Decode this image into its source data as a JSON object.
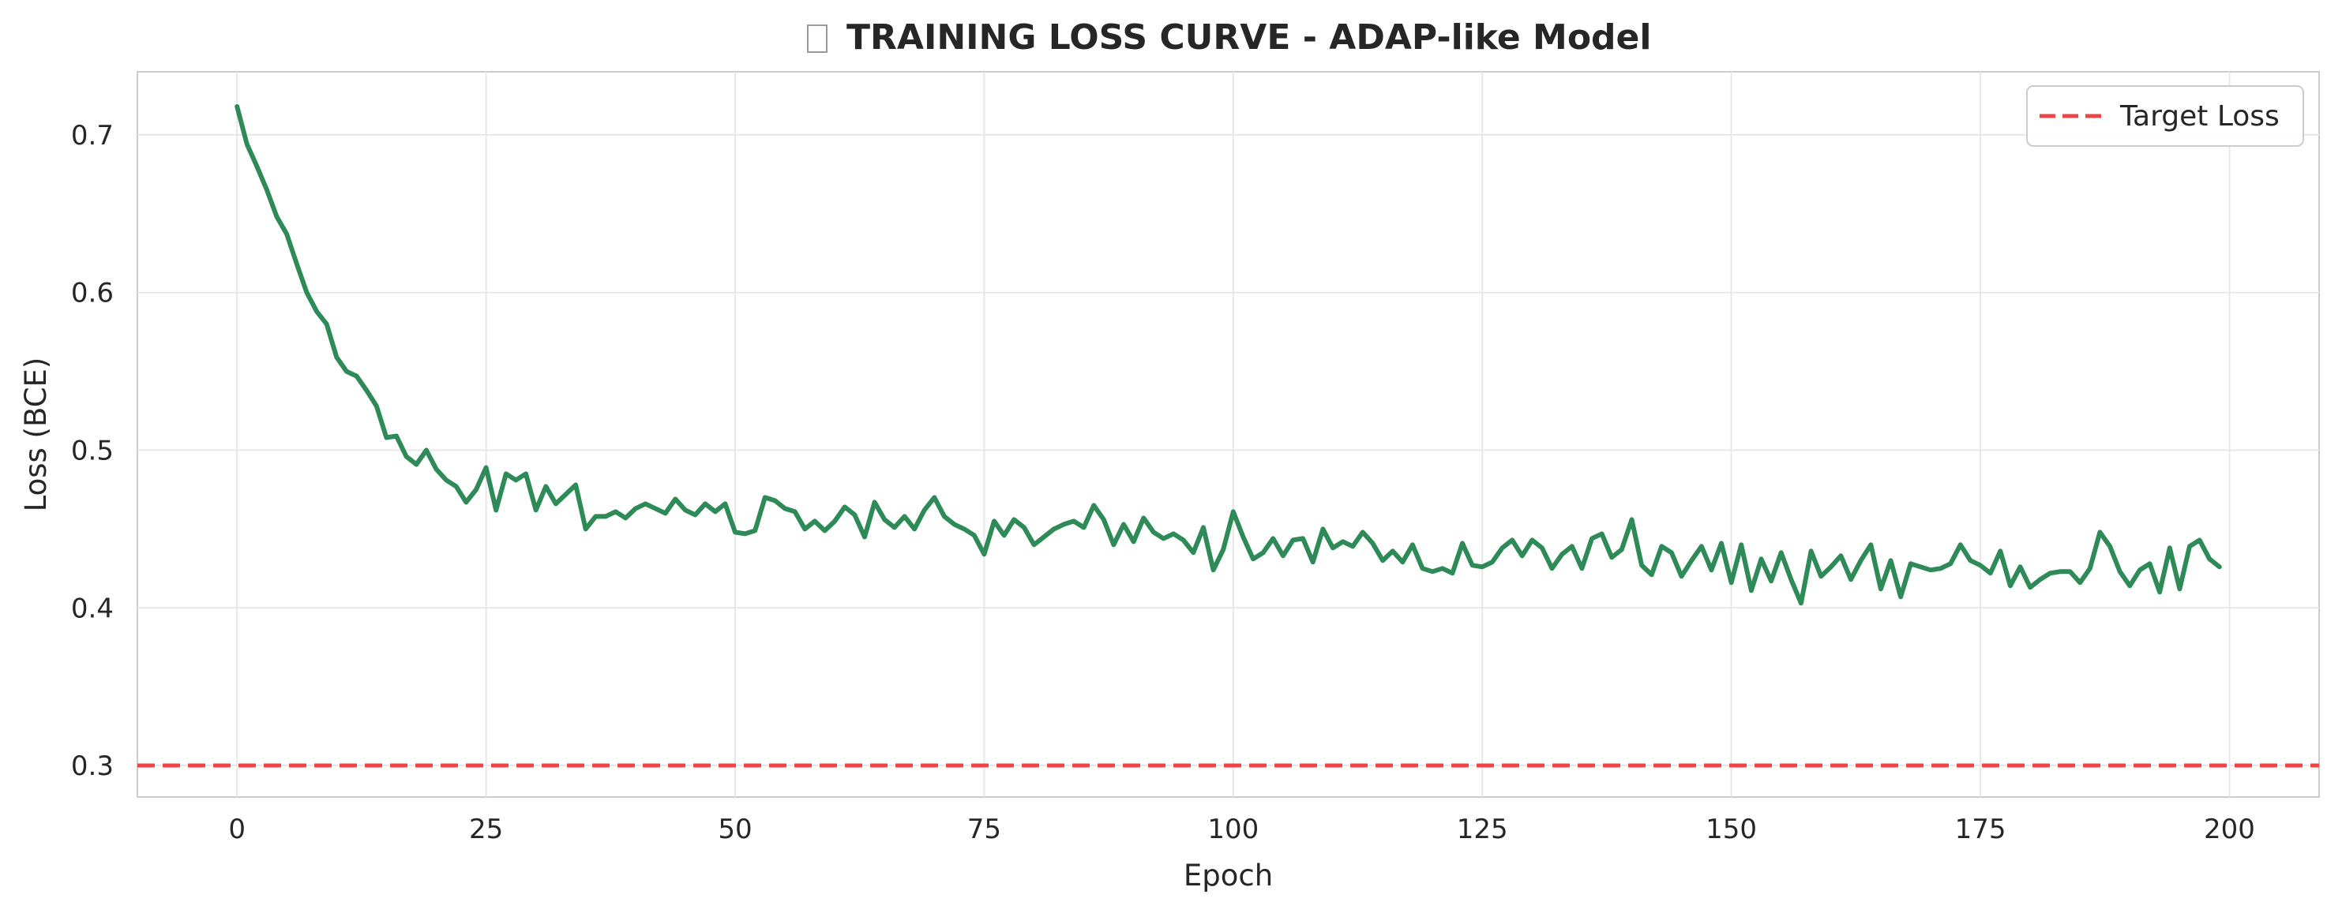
{
  "chart_data": {
    "type": "line",
    "title": "TRAINING LOSS CURVE - ADAP-like Model",
    "title_icon": "glyph-box",
    "xlabel": "Epoch",
    "ylabel": "Loss (BCE)",
    "xlim": [
      -10,
      209
    ],
    "ylim": [
      0.28,
      0.74
    ],
    "xticks": [
      0,
      25,
      50,
      75,
      100,
      125,
      150,
      175,
      200
    ],
    "yticks": [
      0.3,
      0.4,
      0.5,
      0.6,
      0.7
    ],
    "grid": true,
    "legend_position": "top-right",
    "series": [
      {
        "name": "",
        "color": "#2e8b57",
        "values": [
          0.718,
          0.694,
          0.68,
          0.665,
          0.648,
          0.637,
          0.618,
          0.6,
          0.588,
          0.58,
          0.559,
          0.55,
          0.547,
          0.538,
          0.528,
          0.508,
          0.509,
          0.496,
          0.491,
          0.5,
          0.488,
          0.481,
          0.477,
          0.467,
          0.475,
          0.489,
          0.462,
          0.485,
          0.481,
          0.485,
          0.462,
          0.477,
          0.466,
          0.472,
          0.478,
          0.45,
          0.458,
          0.458,
          0.461,
          0.457,
          0.463,
          0.466,
          0.463,
          0.46,
          0.469,
          0.462,
          0.459,
          0.466,
          0.461,
          0.466,
          0.448,
          0.447,
          0.449,
          0.47,
          0.468,
          0.463,
          0.461,
          0.45,
          0.455,
          0.449,
          0.455,
          0.464,
          0.459,
          0.445,
          0.467,
          0.456,
          0.451,
          0.458,
          0.45,
          0.462,
          0.47,
          0.458,
          0.453,
          0.45,
          0.446,
          0.434,
          0.455,
          0.446,
          0.456,
          0.451,
          0.44,
          0.445,
          0.45,
          0.453,
          0.455,
          0.451,
          0.465,
          0.456,
          0.44,
          0.453,
          0.442,
          0.457,
          0.448,
          0.444,
          0.447,
          0.443,
          0.435,
          0.451,
          0.424,
          0.437,
          0.461,
          0.445,
          0.431,
          0.435,
          0.444,
          0.433,
          0.443,
          0.444,
          0.429,
          0.45,
          0.438,
          0.442,
          0.439,
          0.448,
          0.441,
          0.43,
          0.436,
          0.429,
          0.44,
          0.425,
          0.423,
          0.425,
          0.422,
          0.441,
          0.427,
          0.426,
          0.429,
          0.438,
          0.443,
          0.433,
          0.443,
          0.438,
          0.425,
          0.434,
          0.439,
          0.425,
          0.444,
          0.447,
          0.432,
          0.437,
          0.456,
          0.427,
          0.421,
          0.439,
          0.435,
          0.42,
          0.43,
          0.439,
          0.424,
          0.441,
          0.416,
          0.44,
          0.411,
          0.431,
          0.417,
          0.435,
          0.418,
          0.403,
          0.436,
          0.42,
          0.426,
          0.433,
          0.418,
          0.43,
          0.44,
          0.412,
          0.43,
          0.407,
          0.428,
          0.426,
          0.424,
          0.425,
          0.428,
          0.44,
          0.43,
          0.427,
          0.422,
          0.436,
          0.414,
          0.426,
          0.413,
          0.418,
          0.422,
          0.423,
          0.423,
          0.416,
          0.425,
          0.448,
          0.439,
          0.423,
          0.414,
          0.424,
          0.428,
          0.41,
          0.438,
          0.412,
          0.439,
          0.443,
          0.431,
          0.426
        ]
      },
      {
        "name": "Target Loss",
        "color": "#ef4444",
        "style": "dashed",
        "y": 0.3
      }
    ]
  }
}
